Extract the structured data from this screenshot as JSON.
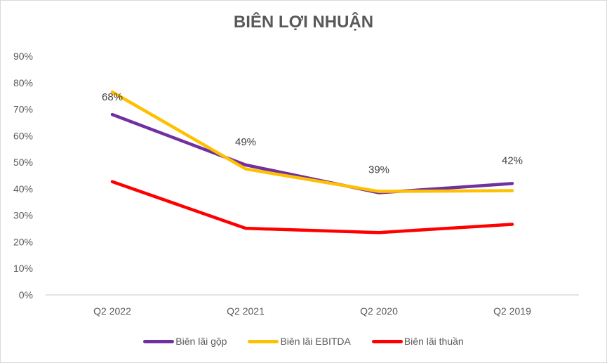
{
  "chart_data": {
    "type": "line",
    "title": "BIÊN LỢI NHUẬN",
    "xlabel": "",
    "ylabel": "",
    "categories": [
      "Q2 2022",
      "Q2 2021",
      "Q2 2020",
      "Q2 2019"
    ],
    "ylim": [
      0,
      90
    ],
    "yticks": [
      "0%",
      "10%",
      "20%",
      "30%",
      "40%",
      "50%",
      "60%",
      "70%",
      "80%",
      "90%"
    ],
    "grid": false,
    "legend_position": "bottom",
    "series": [
      {
        "name": "Biên lãi gộp",
        "color": "#7030a0",
        "values": [
          68,
          49,
          38.5,
          42
        ],
        "labels": [
          "68%",
          "49%",
          "39%",
          "42%"
        ]
      },
      {
        "name": "Biên lãi EBITDA",
        "color": "#ffc000",
        "values": [
          76.5,
          47.5,
          39,
          39.3
        ],
        "labels": []
      },
      {
        "name": "Biên lãi thuần",
        "color": "#ff0000",
        "values": [
          42.7,
          25.1,
          23.5,
          26.6
        ],
        "labels": []
      }
    ]
  }
}
